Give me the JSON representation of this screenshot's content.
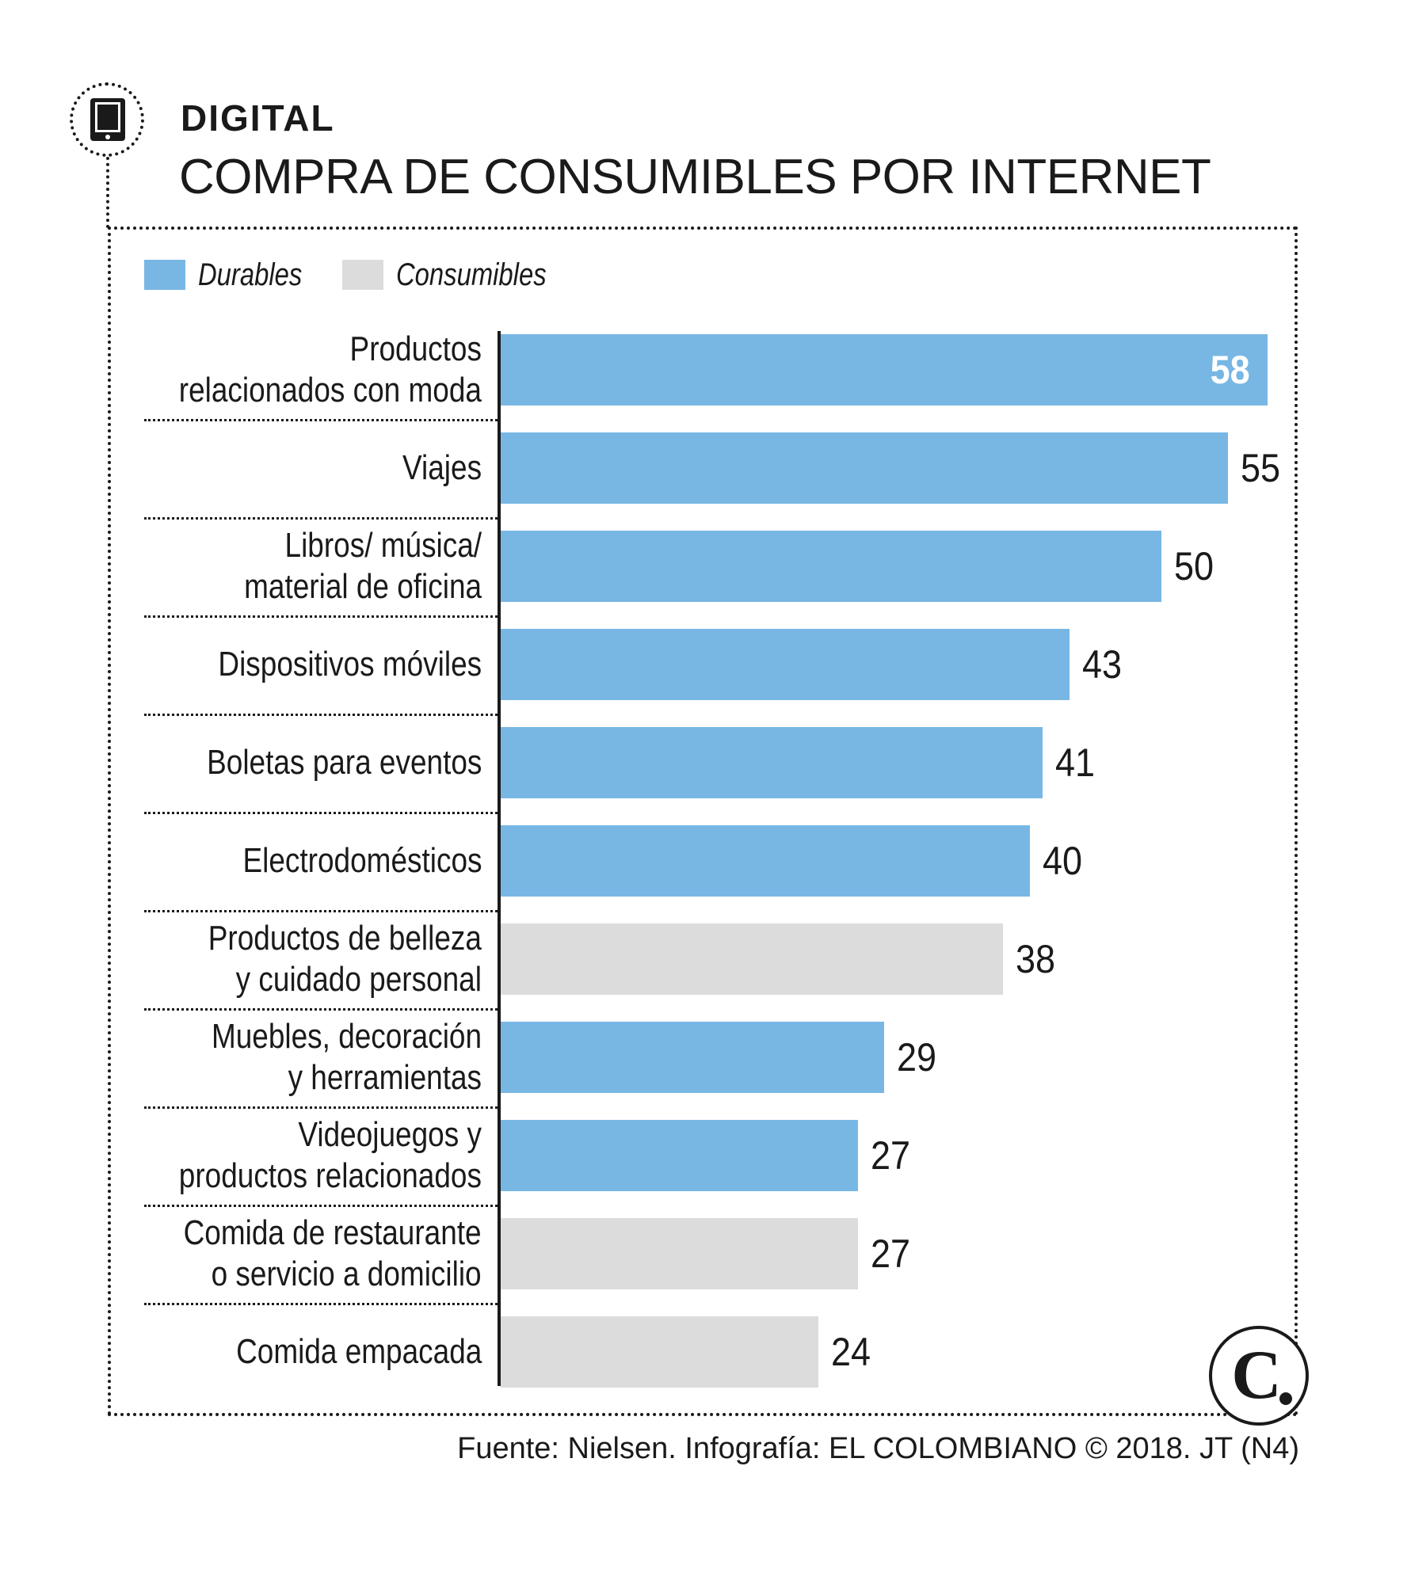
{
  "header": {
    "section": "DIGITAL",
    "title": "COMPRA DE CONSUMIBLES POR INTERNET",
    "icon": "tablet-icon"
  },
  "colors": {
    "durables": "#78b7e4",
    "consumibles": "#dcdcdc",
    "value_inside": "#ffffff",
    "ink": "#1a1a1a"
  },
  "chart_data": {
    "type": "bar",
    "orientation": "horizontal",
    "title": "COMPRA DE CONSUMIBLES POR INTERNET",
    "xlim": [
      0,
      58
    ],
    "legend": [
      {
        "key": "durables",
        "label": "Durables"
      },
      {
        "key": "consumibles",
        "label": "Consumibles"
      }
    ],
    "legend_position": "top-left",
    "items": [
      {
        "label": [
          "Productos",
          "relacionados con moda"
        ],
        "value": 58,
        "group": "durables"
      },
      {
        "label": [
          "Viajes"
        ],
        "value": 55,
        "group": "durables"
      },
      {
        "label": [
          "Libros/ música/",
          "material de oficina"
        ],
        "value": 50,
        "group": "durables"
      },
      {
        "label": [
          "Dispositivos móviles"
        ],
        "value": 43,
        "group": "durables"
      },
      {
        "label": [
          "Boletas para eventos"
        ],
        "value": 41,
        "group": "durables"
      },
      {
        "label": [
          "Electrodomésticos"
        ],
        "value": 40,
        "group": "durables"
      },
      {
        "label": [
          "Productos de belleza",
          "y cuidado personal"
        ],
        "value": 38,
        "group": "consumibles"
      },
      {
        "label": [
          "Muebles, decoración",
          "y herramientas"
        ],
        "value": 29,
        "group": "durables"
      },
      {
        "label": [
          "Videojuegos y",
          "productos relacionados"
        ],
        "value": 27,
        "group": "durables"
      },
      {
        "label": [
          "Comida de restaurante",
          "o servicio a domicilio"
        ],
        "value": 27,
        "group": "consumibles"
      },
      {
        "label": [
          "Comida empacada"
        ],
        "value": 24,
        "group": "consumibles"
      }
    ]
  },
  "footer": {
    "source": "Fuente: Nielsen. Infografía: EL COLOMBIANO © 2018. JT (N4)",
    "logo": "C"
  }
}
